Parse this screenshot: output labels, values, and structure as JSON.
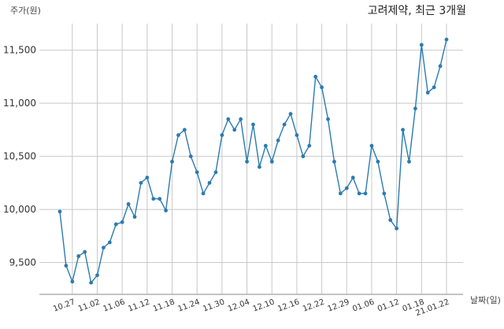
{
  "chart_data": {
    "type": "line",
    "title": "고려제약, 최근 3개월",
    "ylabel": "주가(원)",
    "xlabel": "날짜(일)",
    "ylim": [
      9200,
      11750
    ],
    "yticks": [
      9500,
      10000,
      10500,
      11000,
      11500
    ],
    "ytick_labels": [
      "9,500",
      "10,000",
      "10,500",
      "11,000",
      "11,500"
    ],
    "xtick_labels": [
      "10.27",
      "11.02",
      "11.06",
      "11.12",
      "11.18",
      "11.24",
      "11.30",
      "12.04",
      "12.10",
      "12.16",
      "12.22",
      "12.29",
      "01.06",
      "01.12",
      "01.18",
      "21.01.22"
    ],
    "xtick_indices": [
      2,
      6,
      10,
      14,
      18,
      22,
      26,
      30,
      34,
      38,
      42,
      46,
      50,
      54,
      58,
      62
    ],
    "grid": true,
    "color": "#2b7bb0",
    "series": [
      {
        "values": [
          9980,
          9470,
          9320,
          9560,
          9600,
          9310,
          9380,
          9640,
          9690,
          9860,
          9880,
          10050,
          9930,
          10250,
          10300,
          10100,
          10100,
          9990,
          10450,
          10700,
          10750,
          10500,
          10350,
          10150,
          10250,
          10350,
          10700,
          10850,
          10750,
          10850,
          10450,
          10800,
          10400,
          10600,
          10450,
          10650,
          10800,
          10900,
          10700,
          10500,
          10600,
          11250,
          11150,
          10850,
          10450,
          10150,
          10200,
          10300,
          10150,
          10150,
          10600,
          10450,
          10150,
          9900,
          9820,
          10750,
          10450,
          10950,
          11550,
          11100,
          11150,
          11350,
          11600
        ]
      }
    ]
  }
}
